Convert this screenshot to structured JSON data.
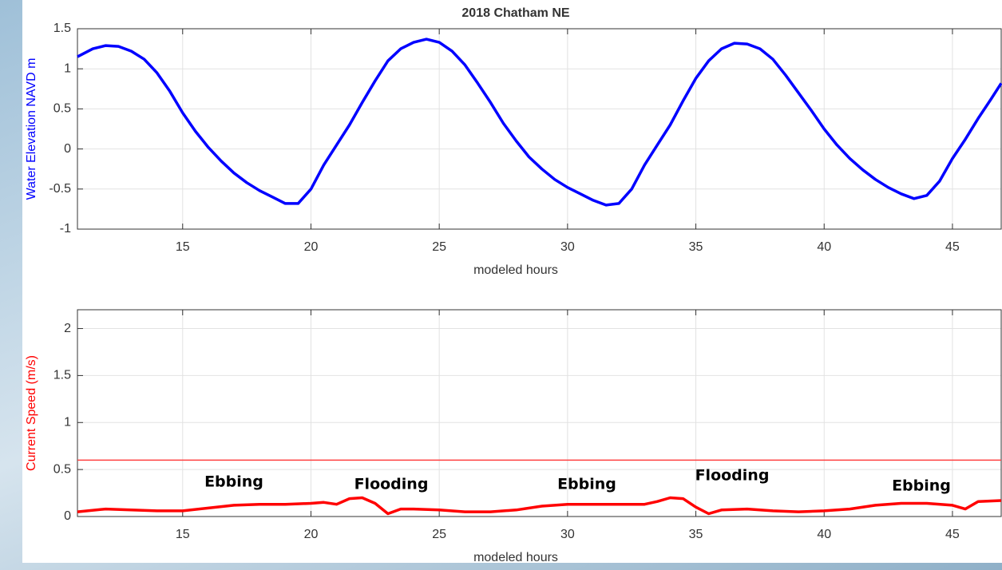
{
  "chart_data": [
    {
      "type": "line",
      "title": "2018 Chatham NE",
      "ylabel": "Water Elevation NAVD m",
      "xlabel": "modeled hours",
      "xlim": [
        10.9,
        46.9
      ],
      "xticks": [
        15,
        20,
        25,
        30,
        35,
        40,
        45
      ],
      "ylim": [
        -1,
        1.5
      ],
      "yticks": [
        -1,
        -0.5,
        0,
        0.5,
        1,
        1.5
      ],
      "grid": true,
      "x": [
        10.9,
        11.5,
        12,
        12.5,
        13,
        13.5,
        14,
        14.5,
        15,
        15.5,
        16,
        16.5,
        17,
        17.5,
        18,
        18.5,
        19,
        19.5,
        20,
        20.5,
        21,
        21.5,
        22,
        22.5,
        23,
        23.5,
        24,
        24.5,
        25,
        25.5,
        26,
        26.5,
        27,
        27.5,
        28,
        28.5,
        29,
        29.5,
        30,
        30.5,
        31,
        31.5,
        32,
        32.5,
        33,
        33.5,
        34,
        34.5,
        35,
        35.5,
        36,
        36.5,
        37,
        37.5,
        38,
        38.5,
        39,
        39.5,
        40,
        40.5,
        41,
        41.5,
        42,
        42.5,
        43,
        43.5,
        44,
        44.5,
        45,
        45.5,
        46,
        46.5,
        46.9
      ],
      "series": [
        {
          "color": "#0000ff",
          "values": [
            1.15,
            1.25,
            1.29,
            1.28,
            1.22,
            1.12,
            0.95,
            0.72,
            0.45,
            0.22,
            0.02,
            -0.15,
            -0.3,
            -0.42,
            -0.52,
            -0.6,
            -0.68,
            -0.68,
            -0.5,
            -0.2,
            0.05,
            0.3,
            0.58,
            0.85,
            1.1,
            1.25,
            1.33,
            1.37,
            1.33,
            1.22,
            1.05,
            0.82,
            0.58,
            0.32,
            0.1,
            -0.1,
            -0.25,
            -0.38,
            -0.48,
            -0.56,
            -0.64,
            -0.7,
            -0.68,
            -0.5,
            -0.2,
            0.05,
            0.3,
            0.6,
            0.88,
            1.1,
            1.25,
            1.32,
            1.31,
            1.25,
            1.12,
            0.92,
            0.7,
            0.48,
            0.25,
            0.05,
            -0.12,
            -0.26,
            -0.38,
            -0.48,
            -0.56,
            -0.62,
            -0.58,
            -0.4,
            -0.12,
            0.12,
            0.38,
            0.62,
            0.82
          ]
        }
      ]
    },
    {
      "type": "line",
      "ylabel": "Current Speed (m/s)",
      "xlabel": "modeled hours",
      "xlim": [
        10.9,
        46.9
      ],
      "xticks": [
        15,
        20,
        25,
        30,
        35,
        40,
        45
      ],
      "ylim": [
        0,
        2.2
      ],
      "yticks": [
        0,
        0.5,
        1,
        1.5,
        2
      ],
      "grid": true,
      "reference_line": {
        "value": 0.6,
        "color": "#ff4040"
      },
      "annotations": [
        "Ebbing",
        "Flooding",
        "Ebbing",
        "Flooding",
        "Ebbing"
      ],
      "x": [
        10.9,
        12,
        13,
        14,
        15,
        16,
        17,
        18,
        19,
        20,
        20.5,
        21,
        21.5,
        22,
        22.5,
        23,
        23.5,
        24,
        25,
        26,
        27,
        28,
        29,
        30,
        31,
        32,
        33,
        33.5,
        34,
        34.5,
        35,
        35.5,
        36,
        37,
        38,
        39,
        40,
        41,
        42,
        43,
        44,
        45,
        45.5,
        46,
        46.9
      ],
      "series": [
        {
          "color": "#ff0000",
          "values": [
            0.05,
            0.08,
            0.07,
            0.06,
            0.06,
            0.09,
            0.12,
            0.13,
            0.13,
            0.14,
            0.15,
            0.13,
            0.19,
            0.2,
            0.14,
            0.03,
            0.08,
            0.08,
            0.07,
            0.05,
            0.05,
            0.07,
            0.11,
            0.13,
            0.13,
            0.13,
            0.13,
            0.16,
            0.2,
            0.19,
            0.1,
            0.03,
            0.07,
            0.08,
            0.06,
            0.05,
            0.06,
            0.08,
            0.12,
            0.14,
            0.14,
            0.12,
            0.08,
            0.16,
            0.17
          ]
        }
      ]
    }
  ]
}
